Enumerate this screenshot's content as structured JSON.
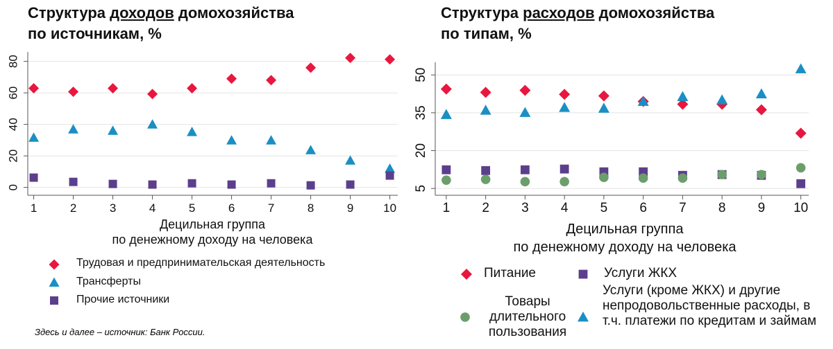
{
  "chart_data": [
    {
      "type": "scatter",
      "title": [
        "Структура",
        "доходов",
        "домохозяйства",
        "по источникам, %"
      ],
      "xlabel": [
        "Децильная группа",
        "по денежному доходу на человека"
      ],
      "x": [
        1,
        2,
        3,
        4,
        5,
        6,
        7,
        8,
        9,
        10
      ],
      "xlim": [
        0.85,
        10.2
      ],
      "xticks": [
        1,
        2,
        3,
        4,
        5,
        6,
        7,
        8,
        9,
        10
      ],
      "ylim": [
        -5,
        86
      ],
      "yticks": [
        0,
        20,
        40,
        60,
        80
      ],
      "grid": true,
      "series": [
        {
          "name": "Трудовая и предпринимательская деятельность",
          "color": "#e8173f",
          "marker": "diamond",
          "values": [
            62.9,
            60.7,
            62.9,
            59.3,
            62.9,
            69,
            68.1,
            76,
            82.2,
            81.3
          ]
        },
        {
          "name": "Трансферты",
          "color": "#1a8fc4",
          "marker": "triangle",
          "values": [
            31.6,
            36.9,
            36,
            40,
            35.2,
            29.9,
            29.9,
            23.7,
            17.1,
            11.9
          ]
        },
        {
          "name": "Прочие источники",
          "color": "#5b3f8c",
          "marker": "square",
          "values": [
            6.2,
            3.5,
            2.2,
            1.8,
            2.6,
            1.8,
            2.6,
            1.3,
            1.8,
            7.5
          ]
        }
      ],
      "note": "Здесь и далее – источник: Банк России."
    },
    {
      "type": "scatter",
      "title": [
        "Структура",
        "расходов",
        "домохозяйства",
        "по типам, %"
      ],
      "xlabel": [
        "Децильная группа",
        "по денежному доходу на человека"
      ],
      "x": [
        1,
        2,
        3,
        4,
        5,
        6,
        7,
        8,
        9,
        10
      ],
      "xlim": [
        0.72,
        10.2
      ],
      "xticks": [
        1,
        2,
        3,
        4,
        5,
        6,
        7,
        8,
        9,
        10
      ],
      "ylim": [
        2.3,
        55
      ],
      "yticks": [
        5,
        20,
        35,
        50
      ],
      "grid": true,
      "series": [
        {
          "name": "Питание",
          "color": "#e8173f",
          "marker": "diamond",
          "values": [
            44.4,
            43.1,
            43.9,
            42.3,
            41.7,
            39.5,
            38.4,
            38.4,
            36.2,
            26.9
          ]
        },
        {
          "name": "Услуги ЖКХ",
          "color": "#5b3f8c",
          "marker": "square",
          "values": [
            12.4,
            12.1,
            12.4,
            12.7,
            11.6,
            11.6,
            10.2,
            10.5,
            10.2,
            6.9
          ]
        },
        {
          "name": "Товары длительного пользования",
          "color": "#6b9e6b",
          "marker": "circle",
          "values": [
            8.3,
            8.6,
            7.7,
            7.7,
            9.4,
            9.1,
            9.1,
            10.5,
            10.5,
            13.2
          ]
        },
        {
          "name": "Услуги (кроме ЖКХ) и другие непродовольственные расходы, в т.ч. платежи по кредитам и займам",
          "color": "#1a8fc4",
          "marker": "triangle",
          "values": [
            34.3,
            36,
            35.1,
            37.1,
            36.8,
            39.5,
            41.4,
            40.1,
            42.5,
            52.4
          ]
        }
      ]
    }
  ]
}
